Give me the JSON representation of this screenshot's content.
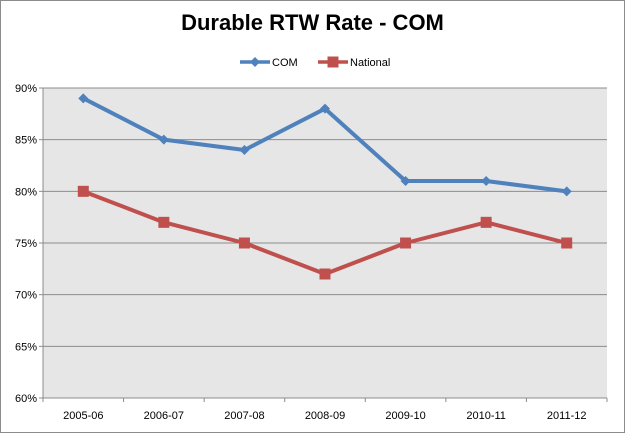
{
  "chart_data": {
    "type": "line",
    "title": "Durable RTW Rate - COM",
    "categories": [
      "2005-06",
      "2006-07",
      "2007-08",
      "2008-09",
      "2009-10",
      "2010-11",
      "2011-12"
    ],
    "series": [
      {
        "name": "COM",
        "values": [
          89,
          85,
          84,
          88,
          81,
          81,
          80
        ],
        "color": "#4f81bd",
        "marker": "diamond"
      },
      {
        "name": "National",
        "values": [
          80,
          77,
          75,
          72,
          75,
          77,
          75
        ],
        "color": "#c0504d",
        "marker": "square"
      }
    ],
    "ylim": [
      60,
      90
    ],
    "yticks": [
      "60%",
      "65%",
      "70%",
      "75%",
      "80%",
      "85%",
      "90%"
    ],
    "ytick_values": [
      60,
      65,
      70,
      75,
      80,
      85,
      90
    ],
    "xlabel": "",
    "ylabel": "",
    "grid": true,
    "legend_position": "top",
    "plot_background": "#e6e6e6"
  }
}
